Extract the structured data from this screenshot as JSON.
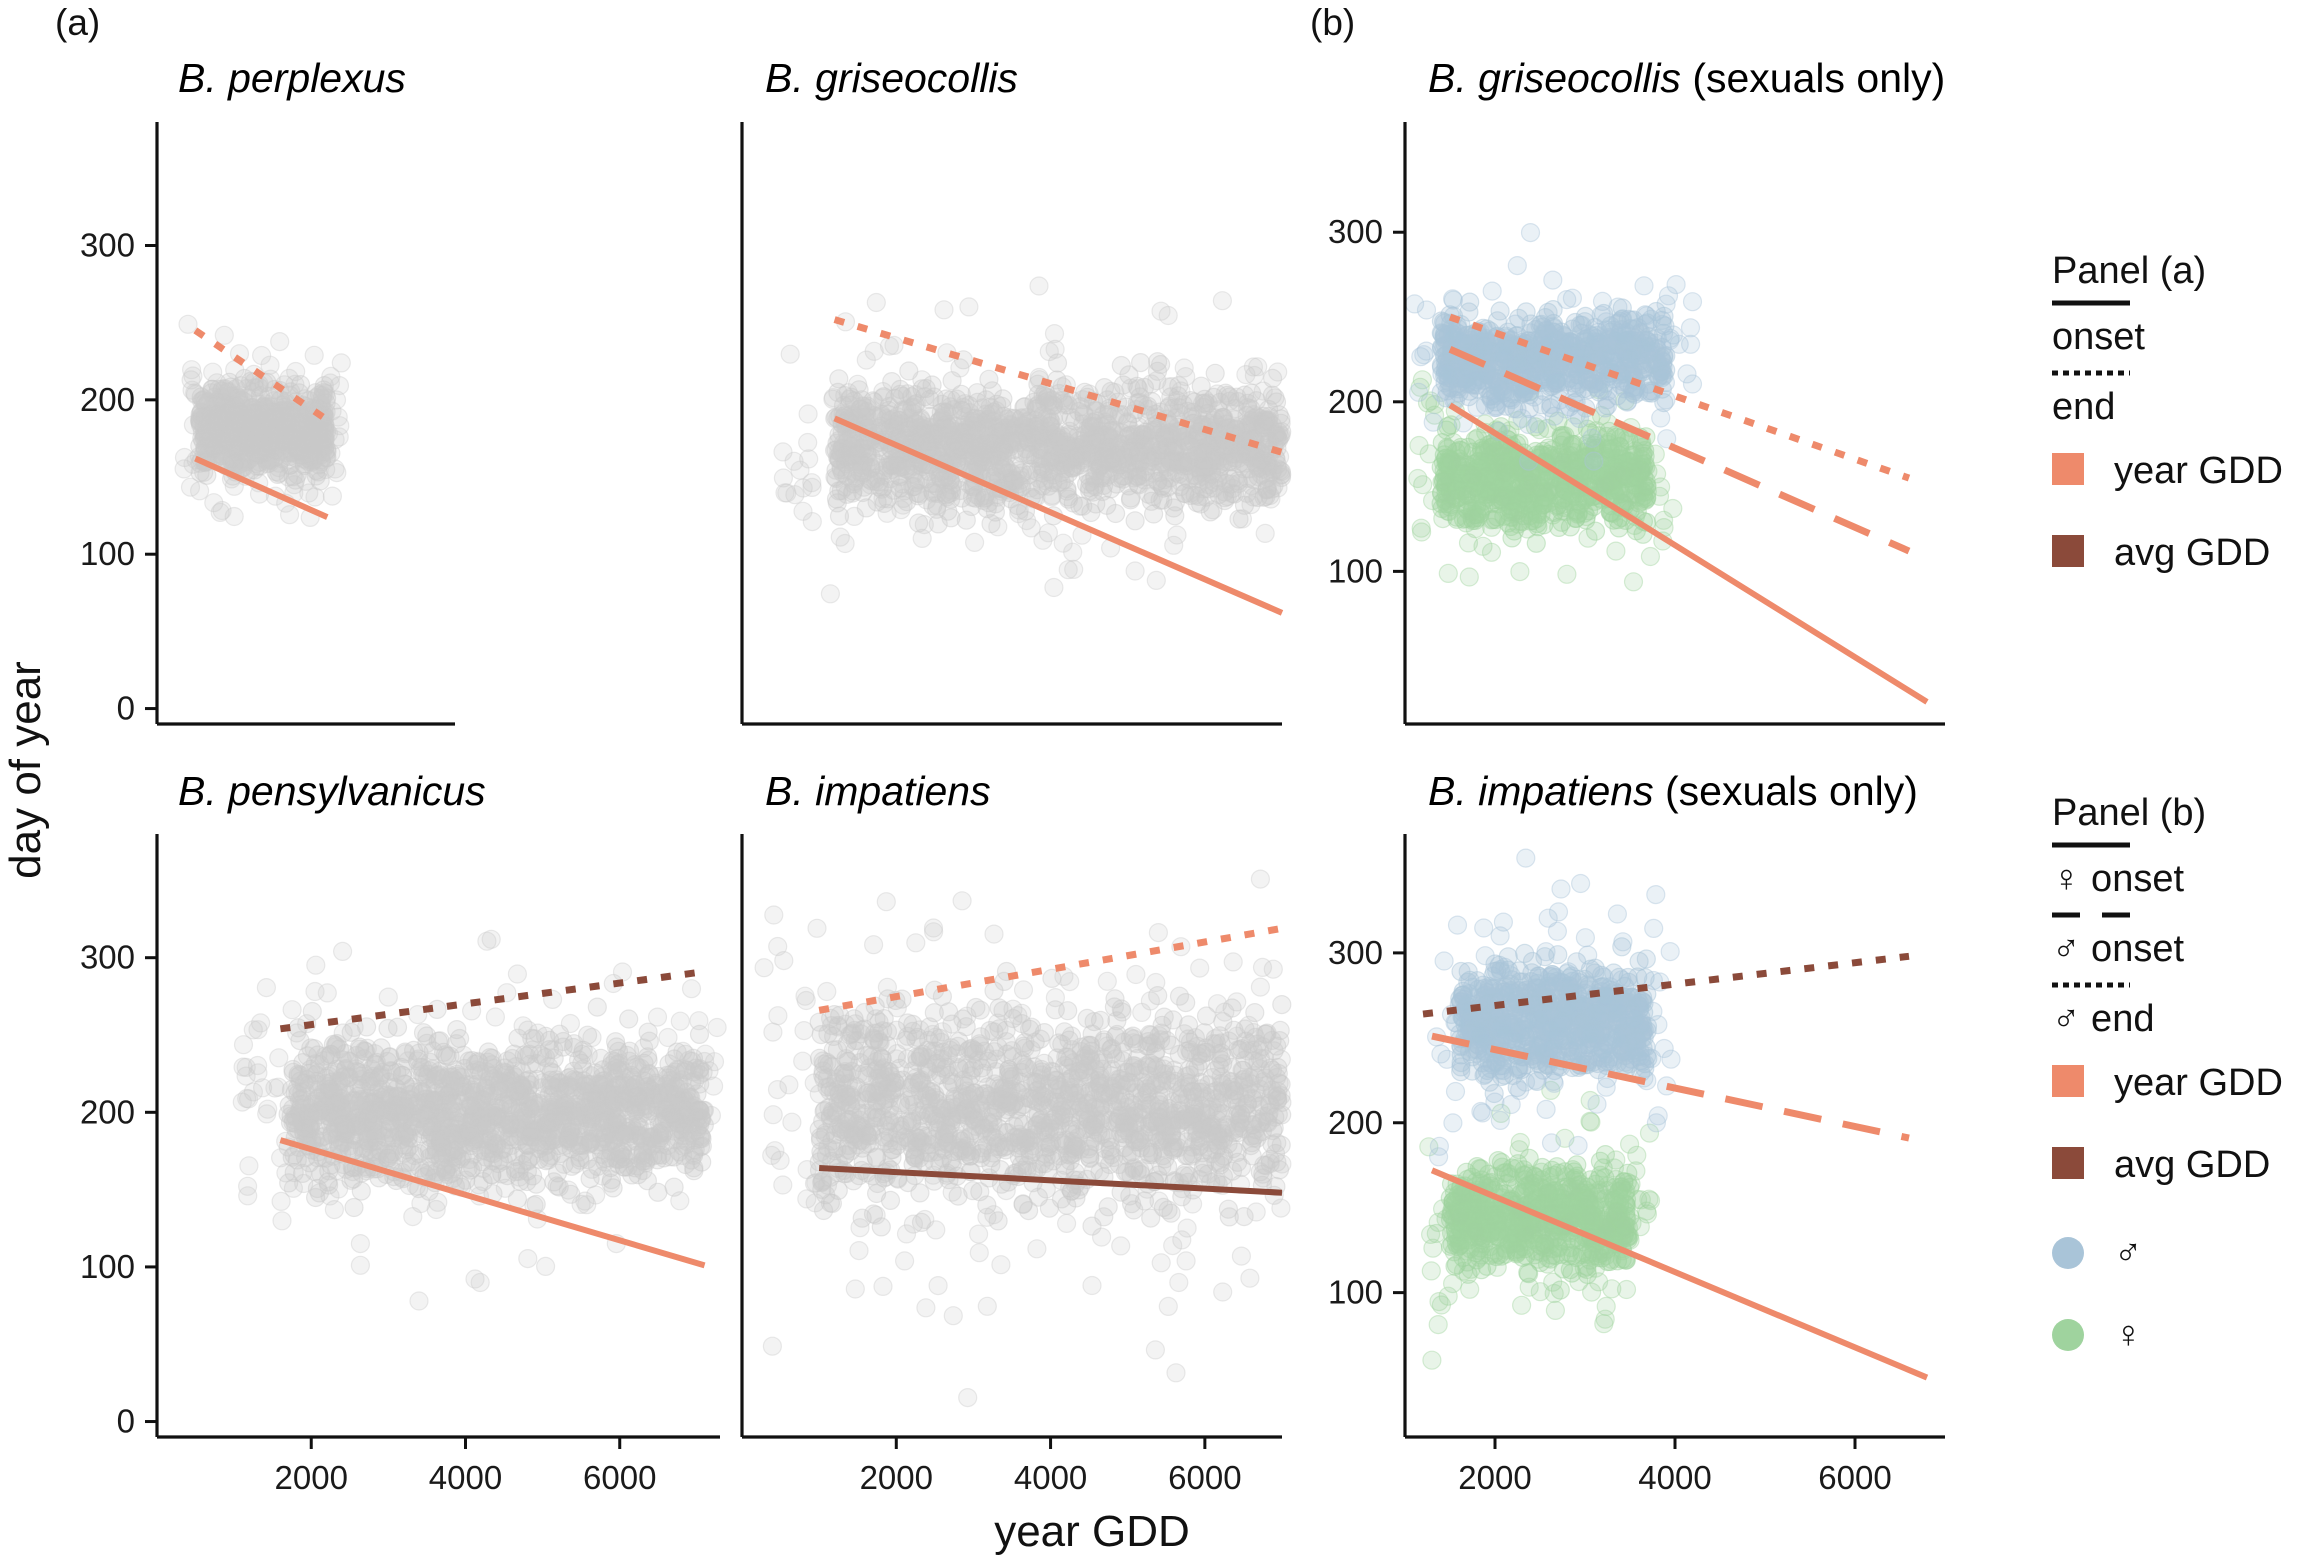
{
  "figure": {
    "panel_tags": [
      "(a)",
      "(b)"
    ],
    "ylabel": "day of year",
    "xlabel": "year GDD"
  },
  "colors": {
    "year_gdd": "#ee8a6b",
    "avg_gdd": "#8b4a3a",
    "male": "#a9c4d8",
    "female": "#9fd39e",
    "points": "#c9c9c9"
  },
  "legend_a": {
    "title": "Panel (a)",
    "items": [
      {
        "line": "solid",
        "label": "onset"
      },
      {
        "line": "dotted",
        "label": "end"
      },
      {
        "fill": "year_gdd",
        "label": "year GDD"
      },
      {
        "fill": "avg_gdd",
        "label": "avg GDD"
      }
    ]
  },
  "legend_b": {
    "title": "Panel (b)",
    "items": [
      {
        "line": "solid",
        "sym": "♀",
        "label": "onset"
      },
      {
        "line": "dashed",
        "sym": "♂",
        "label": "onset"
      },
      {
        "line": "dotted",
        "sym": "♂",
        "label": "end"
      },
      {
        "fill": "year_gdd",
        "label": "year GDD"
      },
      {
        "fill": "avg_gdd",
        "label": "avg GDD"
      },
      {
        "circle": "male",
        "label": "♂"
      },
      {
        "circle": "female",
        "label": "♀"
      }
    ]
  },
  "chart_data": [
    {
      "type": "scatter",
      "title_italic": "B. perplexus",
      "title_rest": "",
      "xlim": [
        0,
        7000
      ],
      "ylim": [
        -10,
        380
      ],
      "yticks": [
        0,
        100,
        200,
        300
      ],
      "xticks": [],
      "cloud": {
        "x": [
          1000,
          4000
        ],
        "y": [
          140,
          220
        ]
      },
      "lines": [
        {
          "style": "solid",
          "color": "year_gdd",
          "x": [
            900,
            4000
          ],
          "y": [
            162,
            124
          ]
        },
        {
          "style": "dotted",
          "color": "year_gdd",
          "x": [
            900,
            4000
          ],
          "y": [
            245,
            187
          ]
        }
      ]
    },
    {
      "type": "scatter",
      "title_italic": "B. griseocollis",
      "title_rest": "",
      "xlim": [
        0,
        7000
      ],
      "ylim": [
        -10,
        380
      ],
      "yticks": [],
      "xticks": [],
      "cloud": {
        "x": [
          1200,
          7000
        ],
        "y": [
          110,
          230
        ]
      },
      "lines": [
        {
          "style": "solid",
          "color": "year_gdd",
          "x": [
            1200,
            7000
          ],
          "y": [
            188,
            62
          ]
        },
        {
          "style": "dotted",
          "color": "year_gdd",
          "x": [
            1200,
            7000
          ],
          "y": [
            252,
            166
          ]
        }
      ]
    },
    {
      "type": "scatter",
      "title_italic": "B. pensylvanicus",
      "title_rest": "",
      "xlim": [
        0,
        7300
      ],
      "ylim": [
        -10,
        380
      ],
      "yticks": [
        0,
        100,
        200,
        300
      ],
      "xticks": [
        2000,
        4000,
        6000
      ],
      "cloud": {
        "x": [
          1700,
          7100
        ],
        "y": [
          130,
          270
        ]
      },
      "lines": [
        {
          "style": "solid",
          "color": "year_gdd",
          "x": [
            1600,
            7100
          ],
          "y": [
            182,
            101
          ]
        },
        {
          "style": "dotted",
          "color": "avg_gdd",
          "x": [
            1600,
            7100
          ],
          "y": [
            254,
            291
          ]
        }
      ]
    },
    {
      "type": "scatter",
      "title_italic": "B. impatiens",
      "title_rest": "",
      "xlim": [
        0,
        7000
      ],
      "ylim": [
        -10,
        380
      ],
      "yticks": [],
      "xticks": [
        2000,
        4000,
        6000
      ],
      "cloud": {
        "x": [
          1000,
          7000
        ],
        "y": [
          110,
          300
        ]
      },
      "lines": [
        {
          "style": "solid",
          "color": "avg_gdd",
          "x": [
            1000,
            7000
          ],
          "y": [
            164,
            148
          ]
        },
        {
          "style": "dotted",
          "color": "year_gdd",
          "x": [
            1000,
            7000
          ],
          "y": [
            266,
            319
          ]
        }
      ]
    },
    {
      "type": "scatter",
      "title_italic": "B. griseocollis",
      "title_rest": " (sexuals only)",
      "xlim": [
        1000,
        7000
      ],
      "ylim": [
        10,
        365
      ],
      "yticks": [
        100,
        200,
        300
      ],
      "xticks": [],
      "clouds": [
        {
          "group": "female",
          "x": [
            1400,
            3700
          ],
          "y": [
            110,
            200
          ]
        },
        {
          "group": "male",
          "x": [
            1400,
            3900
          ],
          "y": [
            185,
            265
          ]
        }
      ],
      "lines": [
        {
          "style": "solid",
          "color": "year_gdd",
          "x": [
            1500,
            6800
          ],
          "y": [
            198,
            23
          ]
        },
        {
          "style": "dashed",
          "color": "year_gdd",
          "x": [
            1500,
            6600
          ],
          "y": [
            231,
            112
          ]
        },
        {
          "style": "dotted",
          "color": "year_gdd",
          "x": [
            1500,
            6600
          ],
          "y": [
            250,
            155
          ]
        }
      ]
    },
    {
      "type": "scatter",
      "title_italic": "B. impatiens",
      "title_rest": " (sexuals only)",
      "xlim": [
        1000,
        7000
      ],
      "ylim": [
        15,
        370
      ],
      "yticks": [
        100,
        200,
        300
      ],
      "xticks": [
        2000,
        4000,
        6000
      ],
      "clouds": [
        {
          "group": "female",
          "x": [
            1500,
            3500
          ],
          "y": [
            100,
            190
          ]
        },
        {
          "group": "male",
          "x": [
            1600,
            3700
          ],
          "y": [
            210,
            310
          ]
        }
      ],
      "lines": [
        {
          "style": "solid",
          "color": "year_gdd",
          "x": [
            1300,
            6800
          ],
          "y": [
            172,
            50
          ]
        },
        {
          "style": "dashed",
          "color": "year_gdd",
          "x": [
            1300,
            6600
          ],
          "y": [
            251,
            191
          ]
        },
        {
          "style": "dotted",
          "color": "avg_gdd",
          "x": [
            1200,
            6600
          ],
          "y": [
            264,
            298
          ]
        }
      ]
    }
  ]
}
